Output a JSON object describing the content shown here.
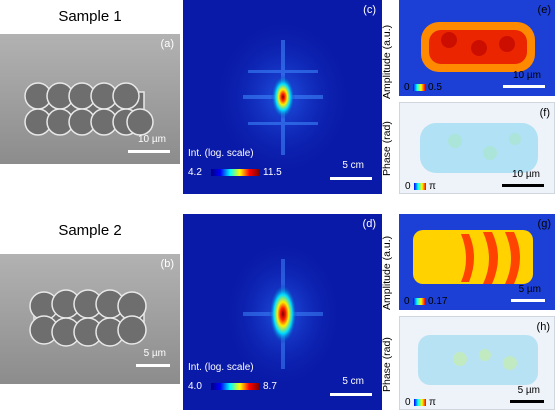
{
  "samples": [
    {
      "title": "Sample 1",
      "sem": {
        "label": "(a)",
        "scale": "10 µm"
      },
      "diffraction": {
        "label": "(c)",
        "colorbar_title": "Int. (log. scale)",
        "cmin": "4.2",
        "cmax": "11.5",
        "scale": "5 cm"
      },
      "amplitude": {
        "label": "(e)",
        "axis": "Amplitude (a.u.)",
        "cmin": "0",
        "cmax": "0.5",
        "scale": "10 µm"
      },
      "phase": {
        "label": "(f)",
        "axis": "Phase (rad)",
        "cmin": "0",
        "cmax": "π",
        "scale": "10 µm"
      }
    },
    {
      "title": "Sample 2",
      "sem": {
        "label": "(b)",
        "scale": "5 µm"
      },
      "diffraction": {
        "label": "(d)",
        "colorbar_title": "Int. (log. scale)",
        "cmin": "4.0",
        "cmax": "8.7",
        "scale": "5 cm"
      },
      "amplitude": {
        "label": "(g)",
        "axis": "Amplitude (a.u.)",
        "cmin": "0",
        "cmax": "0.17",
        "scale": "5 µm"
      },
      "phase": {
        "label": "(h)",
        "axis": "Phase (rad)",
        "cmin": "0",
        "cmax": "π",
        "scale": "5 µm"
      }
    }
  ],
  "colors": {
    "jet": [
      "#00007f",
      "#0000ff",
      "#00ffff",
      "#ffff00",
      "#ff0000",
      "#7f0000"
    ],
    "diffraction_background": "#0a1aa8",
    "amplitude_background": "#1c3fd6"
  }
}
